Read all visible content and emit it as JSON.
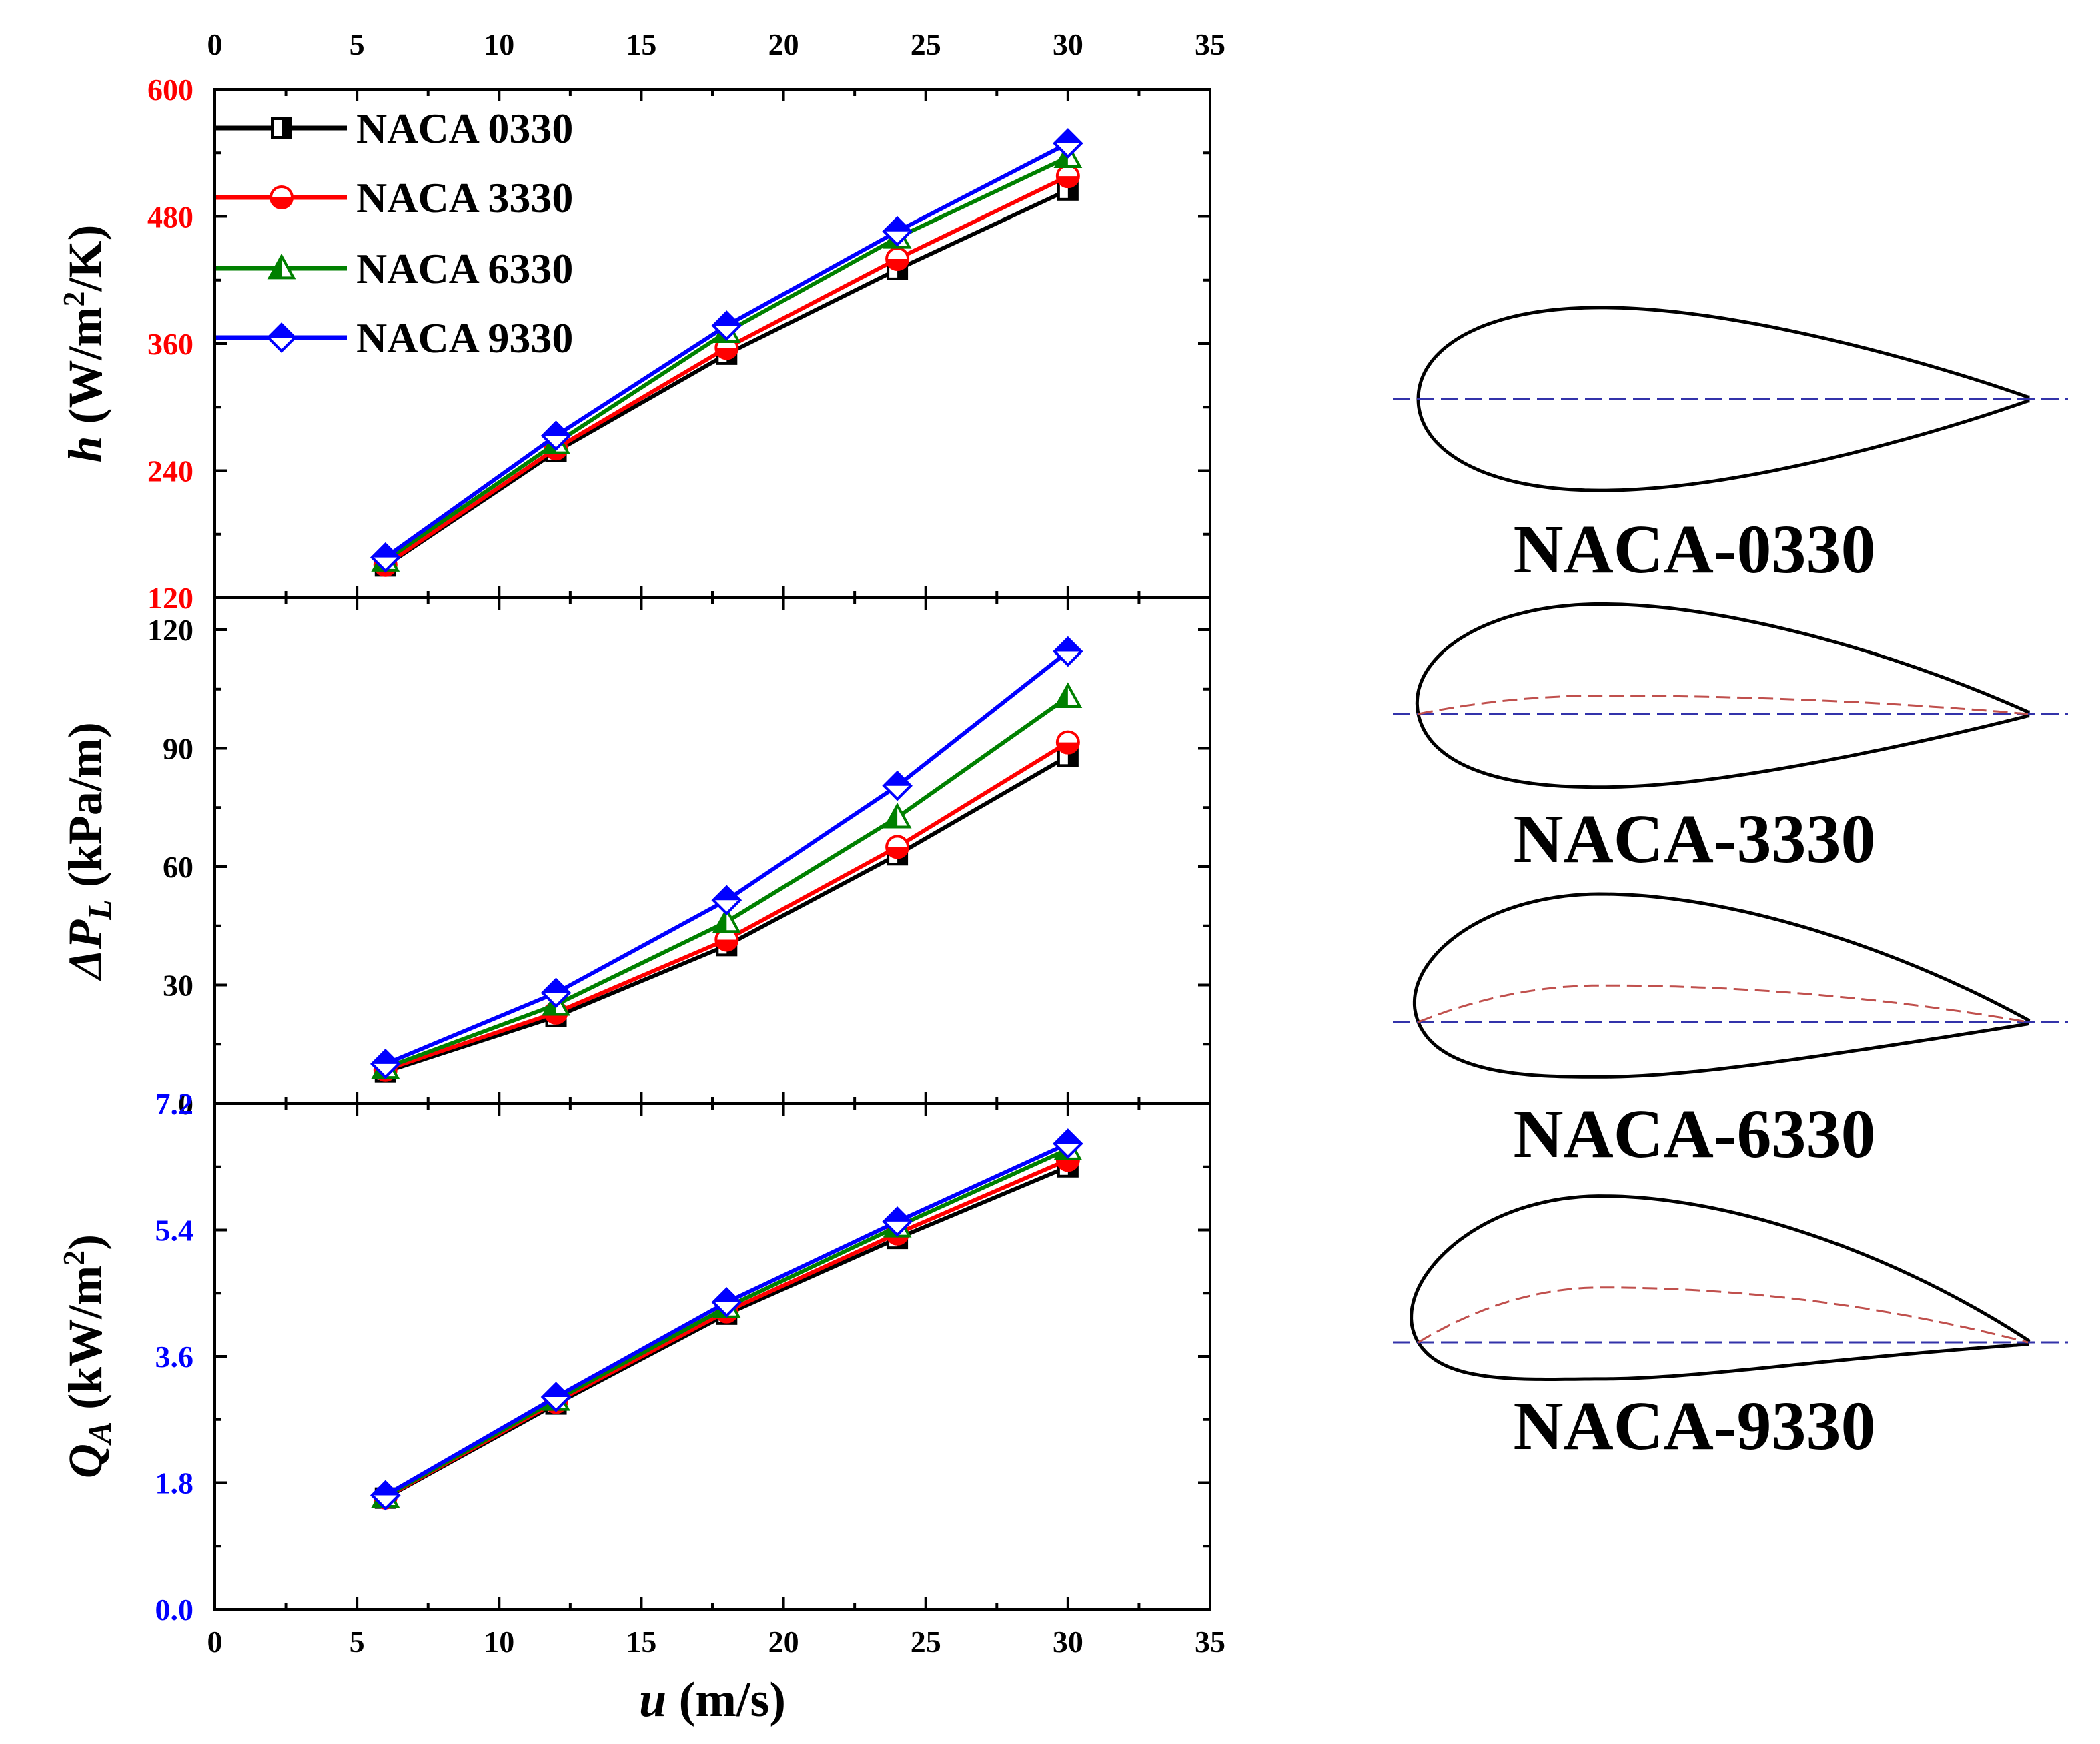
{
  "colors": {
    "NACA 0330": "#000000",
    "NACA 3330": "#ff0000",
    "NACA 6330": "#008000",
    "NACA 9330": "#0000ff",
    "tick_h": "#ff0000",
    "tick_dp": "#000000",
    "tick_q": "#0000ff",
    "camber_line": "#c0504d",
    "chord_line": "#3333aa"
  },
  "chart_data": {
    "type": "line",
    "x": [
      6,
      12,
      18,
      24,
      30
    ],
    "xlabel": {
      "sym": "u",
      "unit": " (m/s)"
    },
    "xlim": [
      0,
      35
    ],
    "xticks": [
      "0",
      "5",
      "10",
      "15",
      "20",
      "25",
      "30",
      "35"
    ],
    "legend": {
      "placement": "top-left",
      "entries": [
        "NACA 0330",
        "NACA 3330",
        "NACA 6330",
        "NACA 9330"
      ]
    },
    "markers": {
      "NACA 0330": "square",
      "NACA 3330": "circle",
      "NACA 6330": "triangle",
      "NACA 9330": "diamond"
    },
    "panels": [
      {
        "id": "h",
        "ylabel": {
          "sym": "h",
          "unit": " (W/m",
          "sup": "2",
          "tail": "/K)"
        },
        "ylim": [
          120,
          600
        ],
        "yticks": [
          "120",
          "240",
          "360",
          "480",
          "600"
        ],
        "tick_color": "#ff0000",
        "series": [
          {
            "name": "NACA 0330",
            "values": [
              150,
              258,
              350,
              430,
              505
            ]
          },
          {
            "name": "NACA 3330",
            "values": [
              151,
              261,
              356,
              440,
              518
            ]
          },
          {
            "name": "NACA 6330",
            "values": [
              155,
              266,
              371,
              460,
              536
            ]
          },
          {
            "name": "NACA 9330",
            "values": [
              158,
              273,
              377,
              466,
              549
            ]
          }
        ]
      },
      {
        "id": "dp",
        "ylabel": {
          "sym": "ΔP",
          "sub": "L",
          "unit": " (kPa/m)"
        },
        "ylim": [
          0,
          120
        ],
        "yticks": [
          "0",
          "30",
          "60",
          "90",
          "120"
        ],
        "tick_color": "#000000",
        "series": [
          {
            "name": "NACA 0330",
            "values": [
              8,
              22,
              40,
              63,
              88
            ]
          },
          {
            "name": "NACA 3330",
            "values": [
              8.5,
              23,
              41.5,
              65,
              91.5
            ]
          },
          {
            "name": "NACA 6330",
            "values": [
              9,
              25,
              46,
              72.5,
              103
            ]
          },
          {
            "name": "NACA 9330",
            "values": [
              10,
              28,
              51.5,
              80.5,
              114.5
            ]
          }
        ]
      },
      {
        "id": "q",
        "ylabel": {
          "sym": "Q",
          "sub": "A",
          "unit": " (kW/m",
          "sup": "2",
          "tail": ")"
        },
        "ylim": [
          0,
          7.2
        ],
        "yticks": [
          "0.0",
          "1.8",
          "3.6",
          "5.4",
          "7.2"
        ],
        "tick_color": "#0000ff",
        "series": [
          {
            "name": "NACA 0330",
            "values": [
              1.58,
              2.92,
              4.2,
              5.28,
              6.3
            ]
          },
          {
            "name": "NACA 3330",
            "values": [
              1.59,
              2.95,
              4.24,
              5.35,
              6.4
            ]
          },
          {
            "name": "NACA 6330",
            "values": [
              1.6,
              2.98,
              4.3,
              5.45,
              6.55
            ]
          },
          {
            "name": "NACA 9330",
            "values": [
              1.62,
              3.02,
              4.37,
              5.52,
              6.63
            ]
          }
        ]
      }
    ]
  },
  "airfoils": [
    {
      "label": "NACA-0330",
      "camber_m": 0.0
    },
    {
      "label": "NACA-3330",
      "camber_m": 0.03
    },
    {
      "label": "NACA-6330",
      "camber_m": 0.06
    },
    {
      "label": "NACA-9330",
      "camber_m": 0.09
    }
  ]
}
